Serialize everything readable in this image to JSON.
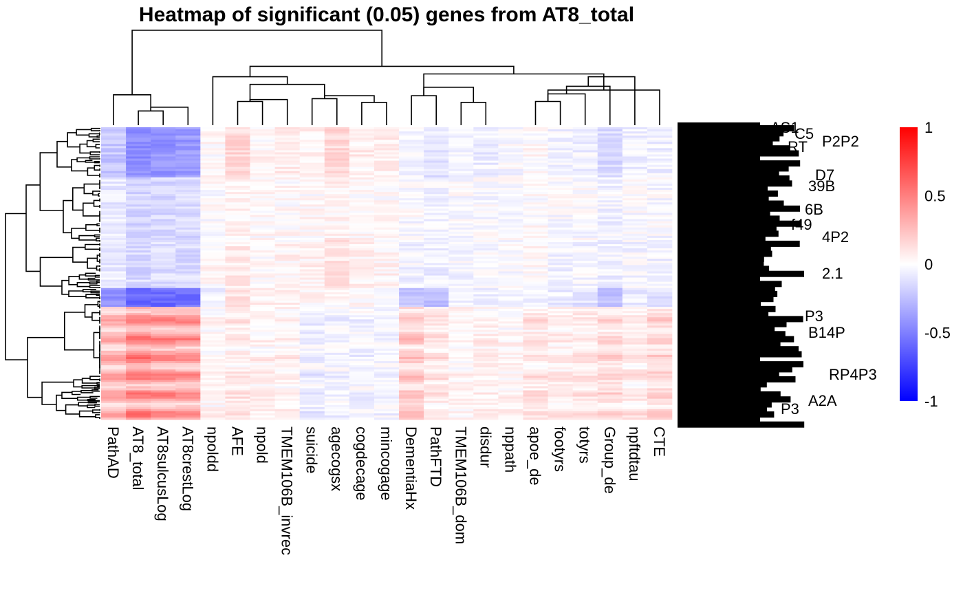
{
  "chart_data": {
    "type": "heatmap",
    "title": "Heatmap of significant (0.05) genes from  AT8_total",
    "columns": [
      "PathAD",
      "AT8_total",
      "AT8sulcusLog",
      "AT8crestLog",
      "npoldd",
      "AFE",
      "npold",
      "TMEM106B_invrec",
      "suicide",
      "agecogsx",
      "cogdecage",
      "mincogage",
      "DementiaHx",
      "PathFTD",
      "TMEM106B_dom",
      "disdur",
      "nppath",
      "apoe_de",
      "footyrs",
      "totyrs",
      "Group_de",
      "npftdtau",
      "CTE"
    ],
    "column_dendrogram_merges": [
      [
        1,
        2
      ],
      [
        2,
        3
      ],
      [
        0,
        1
      ],
      [
        5,
        6
      ],
      [
        6,
        7
      ],
      [
        8,
        9
      ],
      [
        10,
        11
      ],
      [
        9,
        10
      ],
      [
        5,
        8
      ],
      [
        4,
        5
      ],
      [
        12,
        13
      ],
      [
        14,
        15
      ],
      [
        13,
        14
      ],
      [
        17,
        18
      ],
      [
        18,
        19
      ],
      [
        19,
        20
      ],
      [
        20,
        21
      ],
      [
        17,
        22
      ],
      [
        12,
        17
      ],
      [
        4,
        12
      ],
      [
        0,
        4
      ]
    ],
    "column_profiles": {
      "PathAD": {
        "top": -0.22,
        "mid": -0.08,
        "low": -0.42,
        "bottom": 0.32
      },
      "AT8_total": {
        "top": -0.45,
        "mid": -0.15,
        "low": -0.6,
        "bottom": 0.48
      },
      "AT8sulcusLog": {
        "top": -0.42,
        "mid": -0.14,
        "low": -0.58,
        "bottom": 0.45
      },
      "AT8crestLog": {
        "top": -0.4,
        "mid": -0.14,
        "low": -0.55,
        "bottom": 0.42
      },
      "npoldd": {
        "top": 0.02,
        "mid": 0.03,
        "low": -0.05,
        "bottom": 0.05
      },
      "AFE": {
        "top": 0.15,
        "mid": 0.08,
        "low": 0.12,
        "bottom": 0.1
      },
      "npold": {
        "top": 0.03,
        "mid": 0.02,
        "low": 0.05,
        "bottom": 0.06
      },
      "TMEM106B_invrec": {
        "top": 0.06,
        "mid": 0.04,
        "low": 0.04,
        "bottom": 0.06
      },
      "suicide": {
        "top": 0.06,
        "mid": 0.05,
        "low": 0.02,
        "bottom": -0.08
      },
      "agecogsx": {
        "top": 0.15,
        "mid": 0.1,
        "low": 0.03,
        "bottom": -0.05
      },
      "cogdecage": {
        "top": 0.06,
        "mid": 0.05,
        "low": 0.02,
        "bottom": -0.05
      },
      "mincogage": {
        "top": 0.06,
        "mid": 0.04,
        "low": 0.02,
        "bottom": -0.04
      },
      "DementiaHx": {
        "top": -0.05,
        "mid": -0.04,
        "low": -0.2,
        "bottom": 0.22
      },
      "PathFTD": {
        "top": -0.1,
        "mid": -0.06,
        "low": -0.25,
        "bottom": 0.12
      },
      "TMEM106B_dom": {
        "top": -0.04,
        "mid": -0.03,
        "low": -0.05,
        "bottom": 0.04
      },
      "disdur": {
        "top": -0.06,
        "mid": -0.03,
        "low": -0.06,
        "bottom": 0.06
      },
      "nppath": {
        "top": -0.02,
        "mid": -0.02,
        "low": -0.04,
        "bottom": 0.04
      },
      "apoe_de": {
        "top": 0.02,
        "mid": 0.02,
        "low": -0.06,
        "bottom": 0.12
      },
      "footyrs": {
        "top": -0.04,
        "mid": -0.04,
        "low": -0.06,
        "bottom": 0.08
      },
      "totyrs": {
        "top": -0.05,
        "mid": -0.04,
        "low": -0.12,
        "bottom": 0.1
      },
      "Group_de": {
        "top": -0.14,
        "mid": -0.06,
        "low": -0.22,
        "bottom": 0.16
      },
      "npftdtau": {
        "top": -0.05,
        "mid": -0.03,
        "low": -0.08,
        "bottom": 0.1
      },
      "CTE": {
        "top": -0.06,
        "mid": -0.05,
        "low": -0.1,
        "bottom": 0.18
      }
    },
    "row_labels_visible": [
      "AS1",
      "C5",
      "P2P2",
      "RT",
      "D7",
      "39B",
      "6B",
      "f49",
      "4P2",
      "2.1",
      "P3",
      "B14P",
      "RP4P3",
      "A2A",
      "P3"
    ],
    "legend": {
      "type": "colorbar",
      "placement": "right",
      "min": -1,
      "max": 1,
      "ticks": [
        "1",
        "0.5",
        "0",
        "-0.5",
        "-1"
      ]
    },
    "colors": {
      "low": "#0000FF",
      "mid": "#FFFFFF",
      "high": "#FF0000"
    }
  }
}
